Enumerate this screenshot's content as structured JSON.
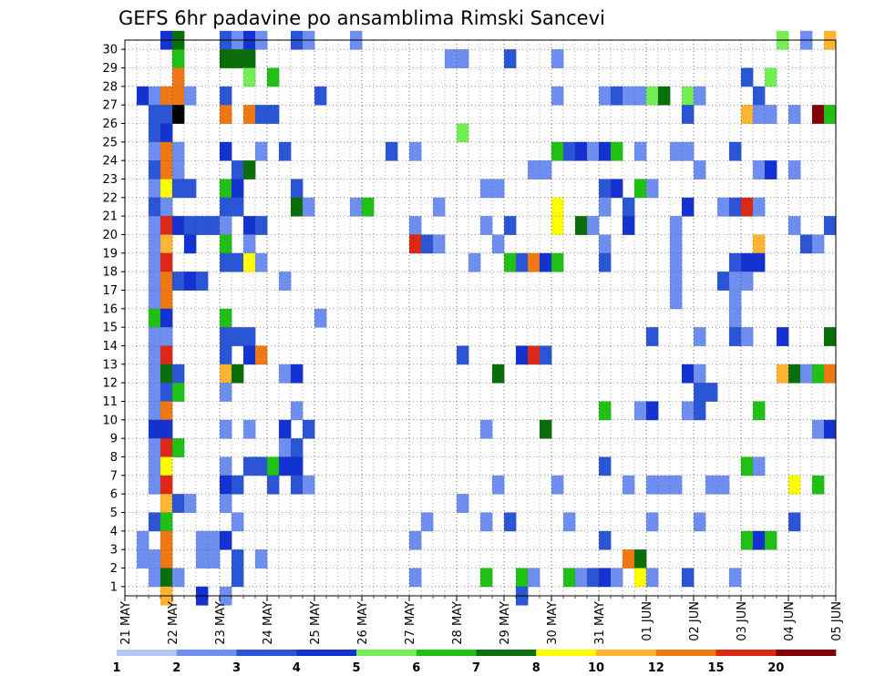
{
  "chart_data": {
    "type": "heatmap",
    "title": "GEFS 6hr padavine po ansamblima Rimski Sancevi",
    "xlabel": "",
    "ylabel": "",
    "x_tick_labels": [
      "21 MAY",
      "22 MAY",
      "23 MAY",
      "24 MAY",
      "25 MAY",
      "26 MAY",
      "27 MAY",
      "28 MAY",
      "29 MAY",
      "30 MAY",
      "31 MAY",
      "01 JUN",
      "02 JUN",
      "03 JUN",
      "04 JUN",
      "05 JUN"
    ],
    "y_tick_labels": [
      "1",
      "2",
      "3",
      "4",
      "5",
      "6",
      "7",
      "8",
      "9",
      "10",
      "11",
      "12",
      "13",
      "14",
      "15",
      "16",
      "17",
      "18",
      "19",
      "20",
      "21",
      "22",
      "23",
      "24",
      "25",
      "26",
      "27",
      "28",
      "29",
      "30"
    ],
    "x_steps_per_day": 4,
    "x_step_count": 60,
    "member_count": 30,
    "grid": true,
    "legend_placement": "bottom",
    "colorbar": {
      "labels": [
        "1",
        "2",
        "3",
        "4",
        "5",
        "6",
        "7",
        "8",
        "10",
        "12",
        "15",
        "20"
      ],
      "colors": [
        "#b4c8f5",
        "#6e8ff0",
        "#2a56d6",
        "#1432d2",
        "#73ee55",
        "#20c014",
        "#0a6e0a",
        "#ffff00",
        "#ffb432",
        "#f07814",
        "#dc2814",
        "#820000"
      ]
    },
    "cells": [
      [
        3,
        30,
        3
      ],
      [
        4,
        30,
        6
      ],
      [
        8,
        30,
        2
      ],
      [
        9,
        30,
        1
      ],
      [
        10,
        30,
        3
      ],
      [
        11,
        30,
        1
      ],
      [
        14,
        30,
        2
      ],
      [
        15,
        30,
        1
      ],
      [
        19,
        30,
        1
      ],
      [
        55,
        30,
        4
      ],
      [
        57,
        30,
        1
      ],
      [
        59,
        30,
        8
      ],
      [
        4,
        29,
        5
      ],
      [
        8,
        29,
        6
      ],
      [
        9,
        29,
        6
      ],
      [
        10,
        29,
        6
      ],
      [
        27,
        29,
        1
      ],
      [
        28,
        29,
        1
      ],
      [
        32,
        29,
        2
      ],
      [
        36,
        29,
        1
      ],
      [
        4,
        28,
        9
      ],
      [
        10,
        28,
        4
      ],
      [
        12,
        28,
        5
      ],
      [
        52,
        28,
        2
      ],
      [
        54,
        28,
        4
      ],
      [
        1,
        27,
        3
      ],
      [
        2,
        27,
        1
      ],
      [
        3,
        27,
        9
      ],
      [
        4,
        27,
        9
      ],
      [
        5,
        27,
        1
      ],
      [
        8,
        27,
        2
      ],
      [
        16,
        27,
        2
      ],
      [
        36,
        27,
        1
      ],
      [
        40,
        27,
        1
      ],
      [
        41,
        27,
        2
      ],
      [
        42,
        27,
        1
      ],
      [
        43,
        27,
        1
      ],
      [
        44,
        27,
        4
      ],
      [
        45,
        27,
        6
      ],
      [
        47,
        27,
        4
      ],
      [
        48,
        27,
        1
      ],
      [
        53,
        27,
        2
      ],
      [
        2,
        26,
        2
      ],
      [
        3,
        26,
        2
      ],
      [
        4,
        26,
        12
      ],
      [
        8,
        26,
        9
      ],
      [
        10,
        26,
        9
      ],
      [
        11,
        26,
        2
      ],
      [
        12,
        26,
        2
      ],
      [
        47,
        26,
        2
      ],
      [
        52,
        26,
        8
      ],
      [
        53,
        26,
        1
      ],
      [
        54,
        26,
        1
      ],
      [
        56,
        26,
        1
      ],
      [
        58,
        26,
        11
      ],
      [
        59,
        26,
        5
      ],
      [
        2,
        25,
        2
      ],
      [
        3,
        25,
        3
      ],
      [
        28,
        25,
        4
      ],
      [
        2,
        24,
        1
      ],
      [
        3,
        24,
        9
      ],
      [
        4,
        24,
        1
      ],
      [
        8,
        24,
        3
      ],
      [
        11,
        24,
        1
      ],
      [
        13,
        24,
        2
      ],
      [
        22,
        24,
        2
      ],
      [
        24,
        24,
        1
      ],
      [
        36,
        24,
        5
      ],
      [
        37,
        24,
        2
      ],
      [
        38,
        24,
        3
      ],
      [
        39,
        24,
        1
      ],
      [
        40,
        24,
        3
      ],
      [
        41,
        24,
        5
      ],
      [
        43,
        24,
        1
      ],
      [
        46,
        24,
        1
      ],
      [
        47,
        24,
        1
      ],
      [
        51,
        24,
        2
      ],
      [
        2,
        23,
        2
      ],
      [
        3,
        23,
        9
      ],
      [
        4,
        23,
        1
      ],
      [
        9,
        23,
        2
      ],
      [
        10,
        23,
        6
      ],
      [
        34,
        23,
        1
      ],
      [
        35,
        23,
        1
      ],
      [
        48,
        23,
        1
      ],
      [
        53,
        23,
        1
      ],
      [
        54,
        23,
        3
      ],
      [
        56,
        23,
        1
      ],
      [
        2,
        22,
        1
      ],
      [
        3,
        22,
        7
      ],
      [
        4,
        22,
        2
      ],
      [
        5,
        22,
        2
      ],
      [
        8,
        22,
        5
      ],
      [
        9,
        22,
        3
      ],
      [
        14,
        22,
        2
      ],
      [
        30,
        22,
        1
      ],
      [
        31,
        22,
        1
      ],
      [
        40,
        22,
        2
      ],
      [
        41,
        22,
        3
      ],
      [
        43,
        22,
        5
      ],
      [
        44,
        22,
        1
      ],
      [
        2,
        21,
        2
      ],
      [
        3,
        21,
        1
      ],
      [
        8,
        21,
        2
      ],
      [
        9,
        21,
        2
      ],
      [
        14,
        21,
        6
      ],
      [
        15,
        21,
        1
      ],
      [
        19,
        21,
        1
      ],
      [
        20,
        21,
        5
      ],
      [
        26,
        21,
        1
      ],
      [
        36,
        21,
        7
      ],
      [
        40,
        21,
        1
      ],
      [
        42,
        21,
        2
      ],
      [
        47,
        21,
        3
      ],
      [
        50,
        21,
        1
      ],
      [
        51,
        21,
        2
      ],
      [
        52,
        21,
        10
      ],
      [
        53,
        21,
        1
      ],
      [
        2,
        20,
        1
      ],
      [
        3,
        20,
        10
      ],
      [
        4,
        20,
        3
      ],
      [
        5,
        20,
        2
      ],
      [
        6,
        20,
        2
      ],
      [
        7,
        20,
        2
      ],
      [
        8,
        20,
        1
      ],
      [
        10,
        20,
        3
      ],
      [
        11,
        20,
        2
      ],
      [
        24,
        20,
        1
      ],
      [
        30,
        20,
        1
      ],
      [
        32,
        20,
        2
      ],
      [
        36,
        20,
        7
      ],
      [
        38,
        20,
        6
      ],
      [
        39,
        20,
        1
      ],
      [
        42,
        20,
        3
      ],
      [
        46,
        20,
        1
      ],
      [
        56,
        20,
        1
      ],
      [
        59,
        20,
        2
      ],
      [
        2,
        19,
        1
      ],
      [
        3,
        19,
        8
      ],
      [
        5,
        19,
        3
      ],
      [
        8,
        19,
        5
      ],
      [
        10,
        19,
        1
      ],
      [
        24,
        19,
        10
      ],
      [
        25,
        19,
        2
      ],
      [
        26,
        19,
        1
      ],
      [
        31,
        19,
        1
      ],
      [
        40,
        19,
        1
      ],
      [
        46,
        19,
        1
      ],
      [
        53,
        19,
        8
      ],
      [
        57,
        19,
        2
      ],
      [
        58,
        19,
        1
      ],
      [
        2,
        18,
        1
      ],
      [
        3,
        18,
        10
      ],
      [
        8,
        18,
        2
      ],
      [
        9,
        18,
        2
      ],
      [
        10,
        18,
        7
      ],
      [
        11,
        18,
        1
      ],
      [
        29,
        18,
        1
      ],
      [
        32,
        18,
        5
      ],
      [
        33,
        18,
        2
      ],
      [
        34,
        18,
        9
      ],
      [
        35,
        18,
        3
      ],
      [
        36,
        18,
        5
      ],
      [
        40,
        18,
        2
      ],
      [
        46,
        18,
        1
      ],
      [
        51,
        18,
        2
      ],
      [
        52,
        18,
        3
      ],
      [
        53,
        18,
        3
      ],
      [
        2,
        17,
        1
      ],
      [
        3,
        17,
        9
      ],
      [
        4,
        17,
        2
      ],
      [
        5,
        17,
        3
      ],
      [
        6,
        17,
        2
      ],
      [
        13,
        17,
        1
      ],
      [
        46,
        17,
        1
      ],
      [
        50,
        17,
        2
      ],
      [
        51,
        17,
        1
      ],
      [
        52,
        17,
        1
      ],
      [
        2,
        16,
        1
      ],
      [
        3,
        16,
        9
      ],
      [
        46,
        16,
        1
      ],
      [
        51,
        16,
        1
      ],
      [
        2,
        15,
        5
      ],
      [
        3,
        15,
        3
      ],
      [
        8,
        15,
        5
      ],
      [
        16,
        15,
        1
      ],
      [
        51,
        15,
        1
      ],
      [
        2,
        14,
        1
      ],
      [
        3,
        14,
        1
      ],
      [
        8,
        14,
        2
      ],
      [
        9,
        14,
        2
      ],
      [
        10,
        14,
        2
      ],
      [
        44,
        14,
        2
      ],
      [
        48,
        14,
        1
      ],
      [
        51,
        14,
        2
      ],
      [
        52,
        14,
        1
      ],
      [
        55,
        14,
        3
      ],
      [
        59,
        14,
        6
      ],
      [
        2,
        13,
        1
      ],
      [
        3,
        13,
        10
      ],
      [
        8,
        13,
        2
      ],
      [
        10,
        13,
        3
      ],
      [
        11,
        13,
        9
      ],
      [
        28,
        13,
        2
      ],
      [
        33,
        13,
        3
      ],
      [
        34,
        13,
        10
      ],
      [
        35,
        13,
        2
      ],
      [
        2,
        12,
        1
      ],
      [
        3,
        12,
        6
      ],
      [
        4,
        12,
        2
      ],
      [
        8,
        12,
        8
      ],
      [
        9,
        12,
        6
      ],
      [
        13,
        12,
        1
      ],
      [
        14,
        12,
        3
      ],
      [
        31,
        12,
        6
      ],
      [
        47,
        12,
        3
      ],
      [
        48,
        12,
        1
      ],
      [
        55,
        12,
        8
      ],
      [
        56,
        12,
        6
      ],
      [
        57,
        12,
        1
      ],
      [
        58,
        12,
        5
      ],
      [
        59,
        12,
        9
      ],
      [
        2,
        11,
        1
      ],
      [
        3,
        11,
        2
      ],
      [
        4,
        11,
        5
      ],
      [
        8,
        11,
        1
      ],
      [
        48,
        11,
        2
      ],
      [
        49,
        11,
        2
      ],
      [
        2,
        10,
        1
      ],
      [
        3,
        10,
        9
      ],
      [
        14,
        10,
        1
      ],
      [
        40,
        10,
        5
      ],
      [
        43,
        10,
        1
      ],
      [
        44,
        10,
        3
      ],
      [
        47,
        10,
        1
      ],
      [
        48,
        10,
        2
      ],
      [
        53,
        10,
        5
      ],
      [
        2,
        9,
        3
      ],
      [
        3,
        9,
        3
      ],
      [
        8,
        9,
        1
      ],
      [
        10,
        9,
        1
      ],
      [
        13,
        9,
        3
      ],
      [
        15,
        9,
        2
      ],
      [
        30,
        9,
        1
      ],
      [
        35,
        9,
        6
      ],
      [
        58,
        9,
        1
      ],
      [
        59,
        9,
        3
      ],
      [
        2,
        8,
        1
      ],
      [
        3,
        8,
        10
      ],
      [
        4,
        8,
        5
      ],
      [
        13,
        8,
        1
      ],
      [
        14,
        8,
        2
      ],
      [
        2,
        7,
        1
      ],
      [
        3,
        7,
        7
      ],
      [
        8,
        7,
        1
      ],
      [
        10,
        7,
        2
      ],
      [
        11,
        7,
        2
      ],
      [
        12,
        7,
        5
      ],
      [
        13,
        7,
        3
      ],
      [
        14,
        7,
        3
      ],
      [
        40,
        7,
        2
      ],
      [
        52,
        7,
        5
      ],
      [
        53,
        7,
        1
      ],
      [
        2,
        6,
        1
      ],
      [
        3,
        6,
        10
      ],
      [
        8,
        6,
        3
      ],
      [
        9,
        6,
        2
      ],
      [
        12,
        6,
        2
      ],
      [
        14,
        6,
        2
      ],
      [
        15,
        6,
        1
      ],
      [
        31,
        6,
        1
      ],
      [
        36,
        6,
        1
      ],
      [
        42,
        6,
        1
      ],
      [
        44,
        6,
        1
      ],
      [
        45,
        6,
        1
      ],
      [
        46,
        6,
        1
      ],
      [
        49,
        6,
        1
      ],
      [
        50,
        6,
        1
      ],
      [
        56,
        6,
        7
      ],
      [
        58,
        6,
        5
      ],
      [
        3,
        5,
        8
      ],
      [
        4,
        5,
        2
      ],
      [
        5,
        5,
        1
      ],
      [
        8,
        5,
        1
      ],
      [
        28,
        5,
        1
      ],
      [
        2,
        4,
        2
      ],
      [
        3,
        4,
        5
      ],
      [
        9,
        4,
        1
      ],
      [
        25,
        4,
        1
      ],
      [
        30,
        4,
        1
      ],
      [
        32,
        4,
        2
      ],
      [
        37,
        4,
        1
      ],
      [
        44,
        4,
        1
      ],
      [
        48,
        4,
        1
      ],
      [
        56,
        4,
        2
      ],
      [
        1,
        3,
        1
      ],
      [
        3,
        3,
        9
      ],
      [
        6,
        3,
        1
      ],
      [
        7,
        3,
        1
      ],
      [
        8,
        3,
        3
      ],
      [
        24,
        3,
        1
      ],
      [
        40,
        3,
        2
      ],
      [
        52,
        3,
        5
      ],
      [
        53,
        3,
        3
      ],
      [
        54,
        3,
        5
      ],
      [
        1,
        2,
        1
      ],
      [
        2,
        2,
        1
      ],
      [
        3,
        2,
        9
      ],
      [
        6,
        2,
        1
      ],
      [
        7,
        2,
        1
      ],
      [
        9,
        2,
        2
      ],
      [
        11,
        2,
        1
      ],
      [
        42,
        2,
        9
      ],
      [
        43,
        2,
        6
      ],
      [
        2,
        1,
        1
      ],
      [
        3,
        1,
        6
      ],
      [
        4,
        1,
        1
      ],
      [
        9,
        1,
        2
      ],
      [
        24,
        1,
        1
      ],
      [
        30,
        1,
        5
      ],
      [
        33,
        1,
        5
      ],
      [
        34,
        1,
        1
      ],
      [
        37,
        1,
        5
      ],
      [
        38,
        1,
        1
      ],
      [
        39,
        1,
        2
      ],
      [
        40,
        1,
        3
      ],
      [
        41,
        1,
        1
      ],
      [
        43,
        1,
        7
      ],
      [
        44,
        1,
        1
      ],
      [
        47,
        1,
        2
      ],
      [
        51,
        1,
        1
      ],
      [
        3,
        0,
        8
      ],
      [
        6,
        0,
        3
      ],
      [
        8,
        0,
        1
      ],
      [
        33,
        0,
        2
      ]
    ]
  }
}
